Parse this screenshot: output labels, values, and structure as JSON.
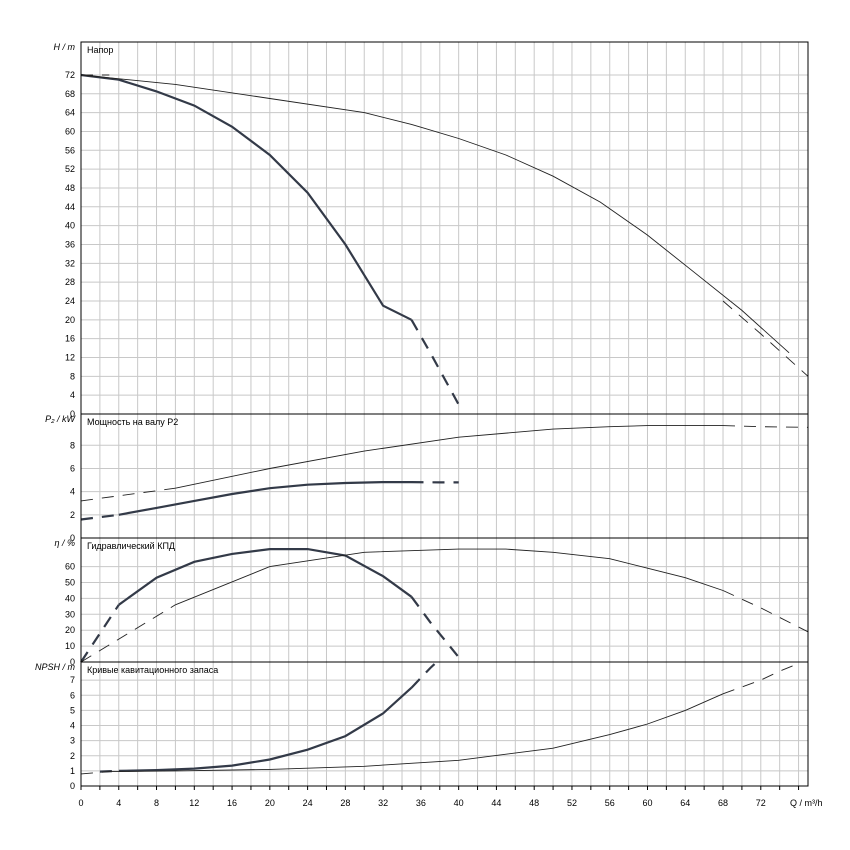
{
  "x_axis": {
    "label": "Q / m³/h",
    "ticks": [
      0,
      4,
      8,
      12,
      16,
      20,
      24,
      28,
      32,
      36,
      40,
      44,
      48,
      52,
      56,
      60,
      64,
      68,
      72
    ]
  },
  "chart_data": [
    {
      "type": "line",
      "title": "Напор",
      "ylabel": "H / m",
      "xlim": [
        0,
        77
      ],
      "ylim": [
        0,
        79
      ],
      "yticks": [
        0,
        4,
        8,
        12,
        16,
        20,
        24,
        28,
        32,
        36,
        40,
        44,
        48,
        52,
        56,
        60,
        64,
        68,
        72
      ],
      "grid": true,
      "series": [
        {
          "style": "thick",
          "x": [
            0,
            4,
            8,
            12,
            16,
            20,
            24,
            28,
            32,
            35
          ],
          "y": [
            72,
            71,
            68.5,
            65.5,
            61,
            55,
            47,
            36,
            23,
            20
          ]
        },
        {
          "style": "thick-dashed",
          "x": [
            35,
            37,
            40
          ],
          "y": [
            20,
            13,
            2
          ]
        },
        {
          "style": "thin",
          "x": [
            0,
            10,
            20,
            30,
            35,
            40,
            45,
            50,
            55,
            60,
            65,
            70,
            75
          ],
          "y": [
            72,
            70,
            67,
            64,
            61.5,
            58.5,
            55,
            50.5,
            45,
            38,
            30,
            22,
            13
          ]
        },
        {
          "style": "thin-dashed",
          "x": [
            0,
            3
          ],
          "y": [
            72,
            72
          ]
        },
        {
          "style": "thin-dashed",
          "x": [
            68,
            72,
            77
          ],
          "y": [
            24,
            17,
            8
          ]
        }
      ]
    },
    {
      "type": "line",
      "title": "Мощность на валу P2",
      "ylabel": "P₂ / kW",
      "xlim": [
        0,
        77
      ],
      "ylim": [
        0,
        10.7
      ],
      "yticks": [
        0,
        2,
        4,
        6,
        8
      ],
      "grid": true,
      "series": [
        {
          "style": "thick-dashed",
          "x": [
            0,
            4
          ],
          "y": [
            1.6,
            2.0
          ]
        },
        {
          "style": "thick",
          "x": [
            4,
            8,
            12,
            16,
            20,
            24,
            28,
            32,
            35
          ],
          "y": [
            2.0,
            2.6,
            3.2,
            3.8,
            4.3,
            4.6,
            4.75,
            4.82,
            4.82
          ]
        },
        {
          "style": "thick-dashed",
          "x": [
            35,
            38,
            40
          ],
          "y": [
            4.82,
            4.8,
            4.8
          ]
        },
        {
          "style": "thin-dashed",
          "x": [
            0,
            10
          ],
          "y": [
            3.2,
            4.3
          ]
        },
        {
          "style": "thin",
          "x": [
            10,
            20,
            30,
            40,
            50,
            56,
            60,
            64,
            68
          ],
          "y": [
            4.3,
            6.0,
            7.5,
            8.7,
            9.4,
            9.6,
            9.7,
            9.7,
            9.7
          ]
        },
        {
          "style": "thin-dashed",
          "x": [
            68,
            72,
            77
          ],
          "y": [
            9.7,
            9.6,
            9.55
          ]
        }
      ]
    },
    {
      "type": "line",
      "title": "Гидравлический КПД",
      "ylabel": "η / %",
      "xlim": [
        0,
        77
      ],
      "ylim": [
        0,
        78
      ],
      "yticks": [
        0,
        10,
        20,
        30,
        40,
        50,
        60
      ],
      "grid": true,
      "series": [
        {
          "style": "thick-dashed",
          "x": [
            0,
            2,
            4
          ],
          "y": [
            0,
            18,
            36
          ]
        },
        {
          "style": "thick",
          "x": [
            4,
            8,
            12,
            16,
            20,
            24,
            28,
            32,
            35
          ],
          "y": [
            36,
            53,
            63,
            68,
            71,
            71,
            67,
            54,
            41
          ]
        },
        {
          "style": "thick-dashed",
          "x": [
            35,
            37,
            40
          ],
          "y": [
            41,
            25,
            3
          ]
        },
        {
          "style": "thin-dashed",
          "x": [
            0,
            10
          ],
          "y": [
            0,
            36
          ]
        },
        {
          "style": "thin",
          "x": [
            10,
            20,
            30,
            40,
            45,
            50,
            56,
            60,
            64,
            68
          ],
          "y": [
            36,
            60,
            69,
            71,
            71,
            69,
            65,
            59,
            53,
            45
          ]
        },
        {
          "style": "thin-dashed",
          "x": [
            68,
            72,
            77
          ],
          "y": [
            45,
            34,
            19
          ]
        }
      ]
    },
    {
      "type": "line",
      "title": "Кривые кавитационного запаса",
      "ylabel": "NPSH / m",
      "xlim": [
        0,
        77
      ],
      "ylim": [
        0,
        8.2
      ],
      "yticks": [
        0,
        1,
        2,
        3,
        4,
        5,
        6,
        7
      ],
      "grid": true,
      "series": [
        {
          "style": "thick-dashed",
          "x": [
            2,
            4
          ],
          "y": [
            0.95,
            1.0
          ]
        },
        {
          "style": "thick",
          "x": [
            4,
            8,
            12,
            16,
            20,
            24,
            28,
            32,
            35
          ],
          "y": [
            1.0,
            1.05,
            1.15,
            1.35,
            1.75,
            2.4,
            3.3,
            4.8,
            6.5
          ]
        },
        {
          "style": "thick-dashed",
          "x": [
            35,
            37,
            37.5
          ],
          "y": [
            6.5,
            7.8,
            8.1
          ]
        },
        {
          "style": "thin-dashed",
          "x": [
            0,
            3
          ],
          "y": [
            0.8,
            0.95
          ]
        },
        {
          "style": "thin",
          "x": [
            3,
            10,
            20,
            30,
            40,
            50,
            56,
            60,
            64,
            68
          ],
          "y": [
            0.95,
            1.0,
            1.1,
            1.3,
            1.7,
            2.5,
            3.4,
            4.1,
            5.0,
            6.1
          ]
        },
        {
          "style": "thin-dashed",
          "x": [
            68,
            72,
            74,
            76
          ],
          "y": [
            6.1,
            7.0,
            7.6,
            8.1
          ]
        }
      ]
    }
  ]
}
